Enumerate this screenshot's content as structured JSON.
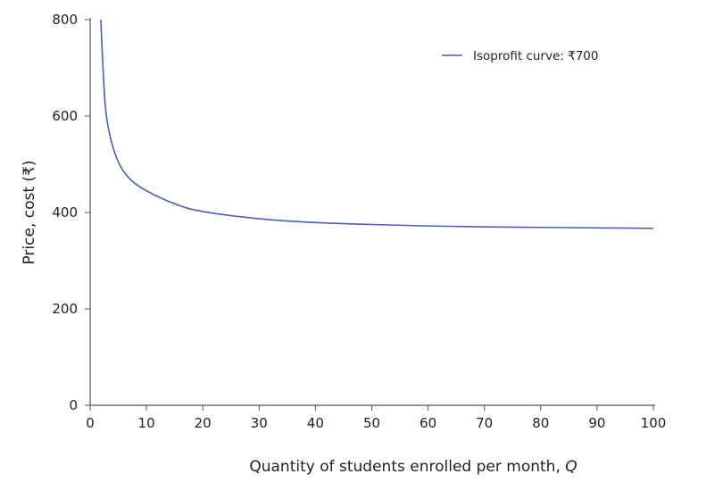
{
  "chart_data": {
    "type": "line",
    "title": "",
    "xlabel": "Quantity of students enrolled per month, ",
    "xlabel_var": "Q",
    "ylabel": "Price, cost (₹)",
    "xlim": [
      0,
      100
    ],
    "ylim": [
      0,
      800
    ],
    "xticks": [
      0,
      10,
      20,
      30,
      40,
      50,
      60,
      70,
      80,
      90,
      100
    ],
    "yticks": [
      0,
      200,
      400,
      600,
      800
    ],
    "grid": false,
    "legend_position": "top-right",
    "series": [
      {
        "name": "Isoprofit curve: ₹700",
        "color": "#4a5fb5",
        "points": [
          [
            1.9,
            800
          ],
          [
            2.2,
            720
          ],
          [
            2.7,
            620
          ],
          [
            3.5,
            560
          ],
          [
            5,
            505
          ],
          [
            7,
            470
          ],
          [
            10,
            445
          ],
          [
            15,
            418
          ],
          [
            20,
            402
          ],
          [
            30,
            387
          ],
          [
            40,
            379
          ],
          [
            50,
            375
          ],
          [
            60,
            372
          ],
          [
            70,
            370
          ],
          [
            80,
            369
          ],
          [
            90,
            368
          ],
          [
            100,
            367
          ]
        ]
      }
    ]
  }
}
